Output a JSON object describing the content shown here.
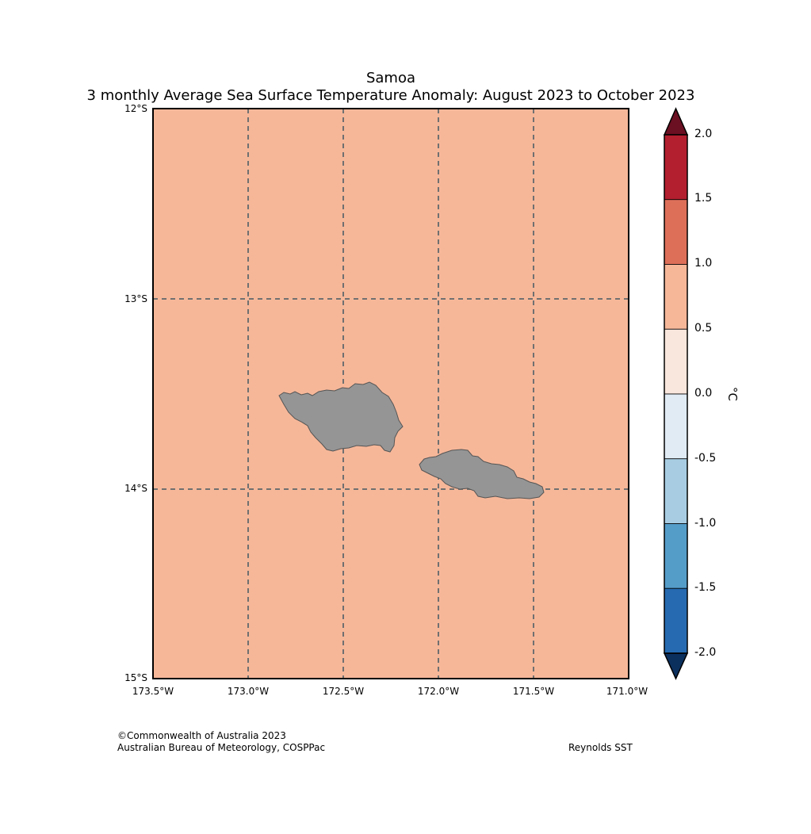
{
  "title": "Samoa",
  "subtitle": "3 monthly Average Sea Surface Temperature Anomaly: August 2023 to October 2023",
  "map": {
    "ocean_color": "#f6b799",
    "land_color": "#959595",
    "lat_labels": [
      "12°S",
      "13°S",
      "14°S",
      "15°S"
    ],
    "lon_labels": [
      "173.5°W",
      "173.0°W",
      "172.5°W",
      "172.0°W",
      "171.5°W",
      "171.0°W"
    ],
    "lat_range": [
      -15,
      -12
    ],
    "lon_range": [
      -173.5,
      -171.0
    ],
    "gridlines": "dashed"
  },
  "colorbar": {
    "unit": "°C",
    "tick_labels": [
      "2.0",
      "1.5",
      "1.0",
      "0.5",
      "0.0",
      "-0.5",
      "-1.0",
      "-1.5",
      "-2.0"
    ],
    "colors": {
      "above_max": "#67001f",
      "bins": [
        "#b2182b",
        "#d6604d",
        "#f4a582",
        "#fddbc7",
        "#d1e5f0",
        "#92c5de",
        "#4393c3",
        "#2166ac"
      ],
      "below_min": "#053061"
    },
    "bin_colors_rendered": [
      "#b31f2f",
      "#dd6f59",
      "#f6b799",
      "#f9e6dc",
      "#e0ebf4",
      "#a8cde3",
      "#559dc9",
      "#266bb1"
    ],
    "above_max_rendered": "#6b0f22",
    "below_min_rendered": "#0b305e"
  },
  "footer": {
    "copyright": "©Commonwealth of Australia 2023",
    "agency": "Australian Bureau of Meteorology, COSPPac",
    "source": "Reynolds SST"
  }
}
